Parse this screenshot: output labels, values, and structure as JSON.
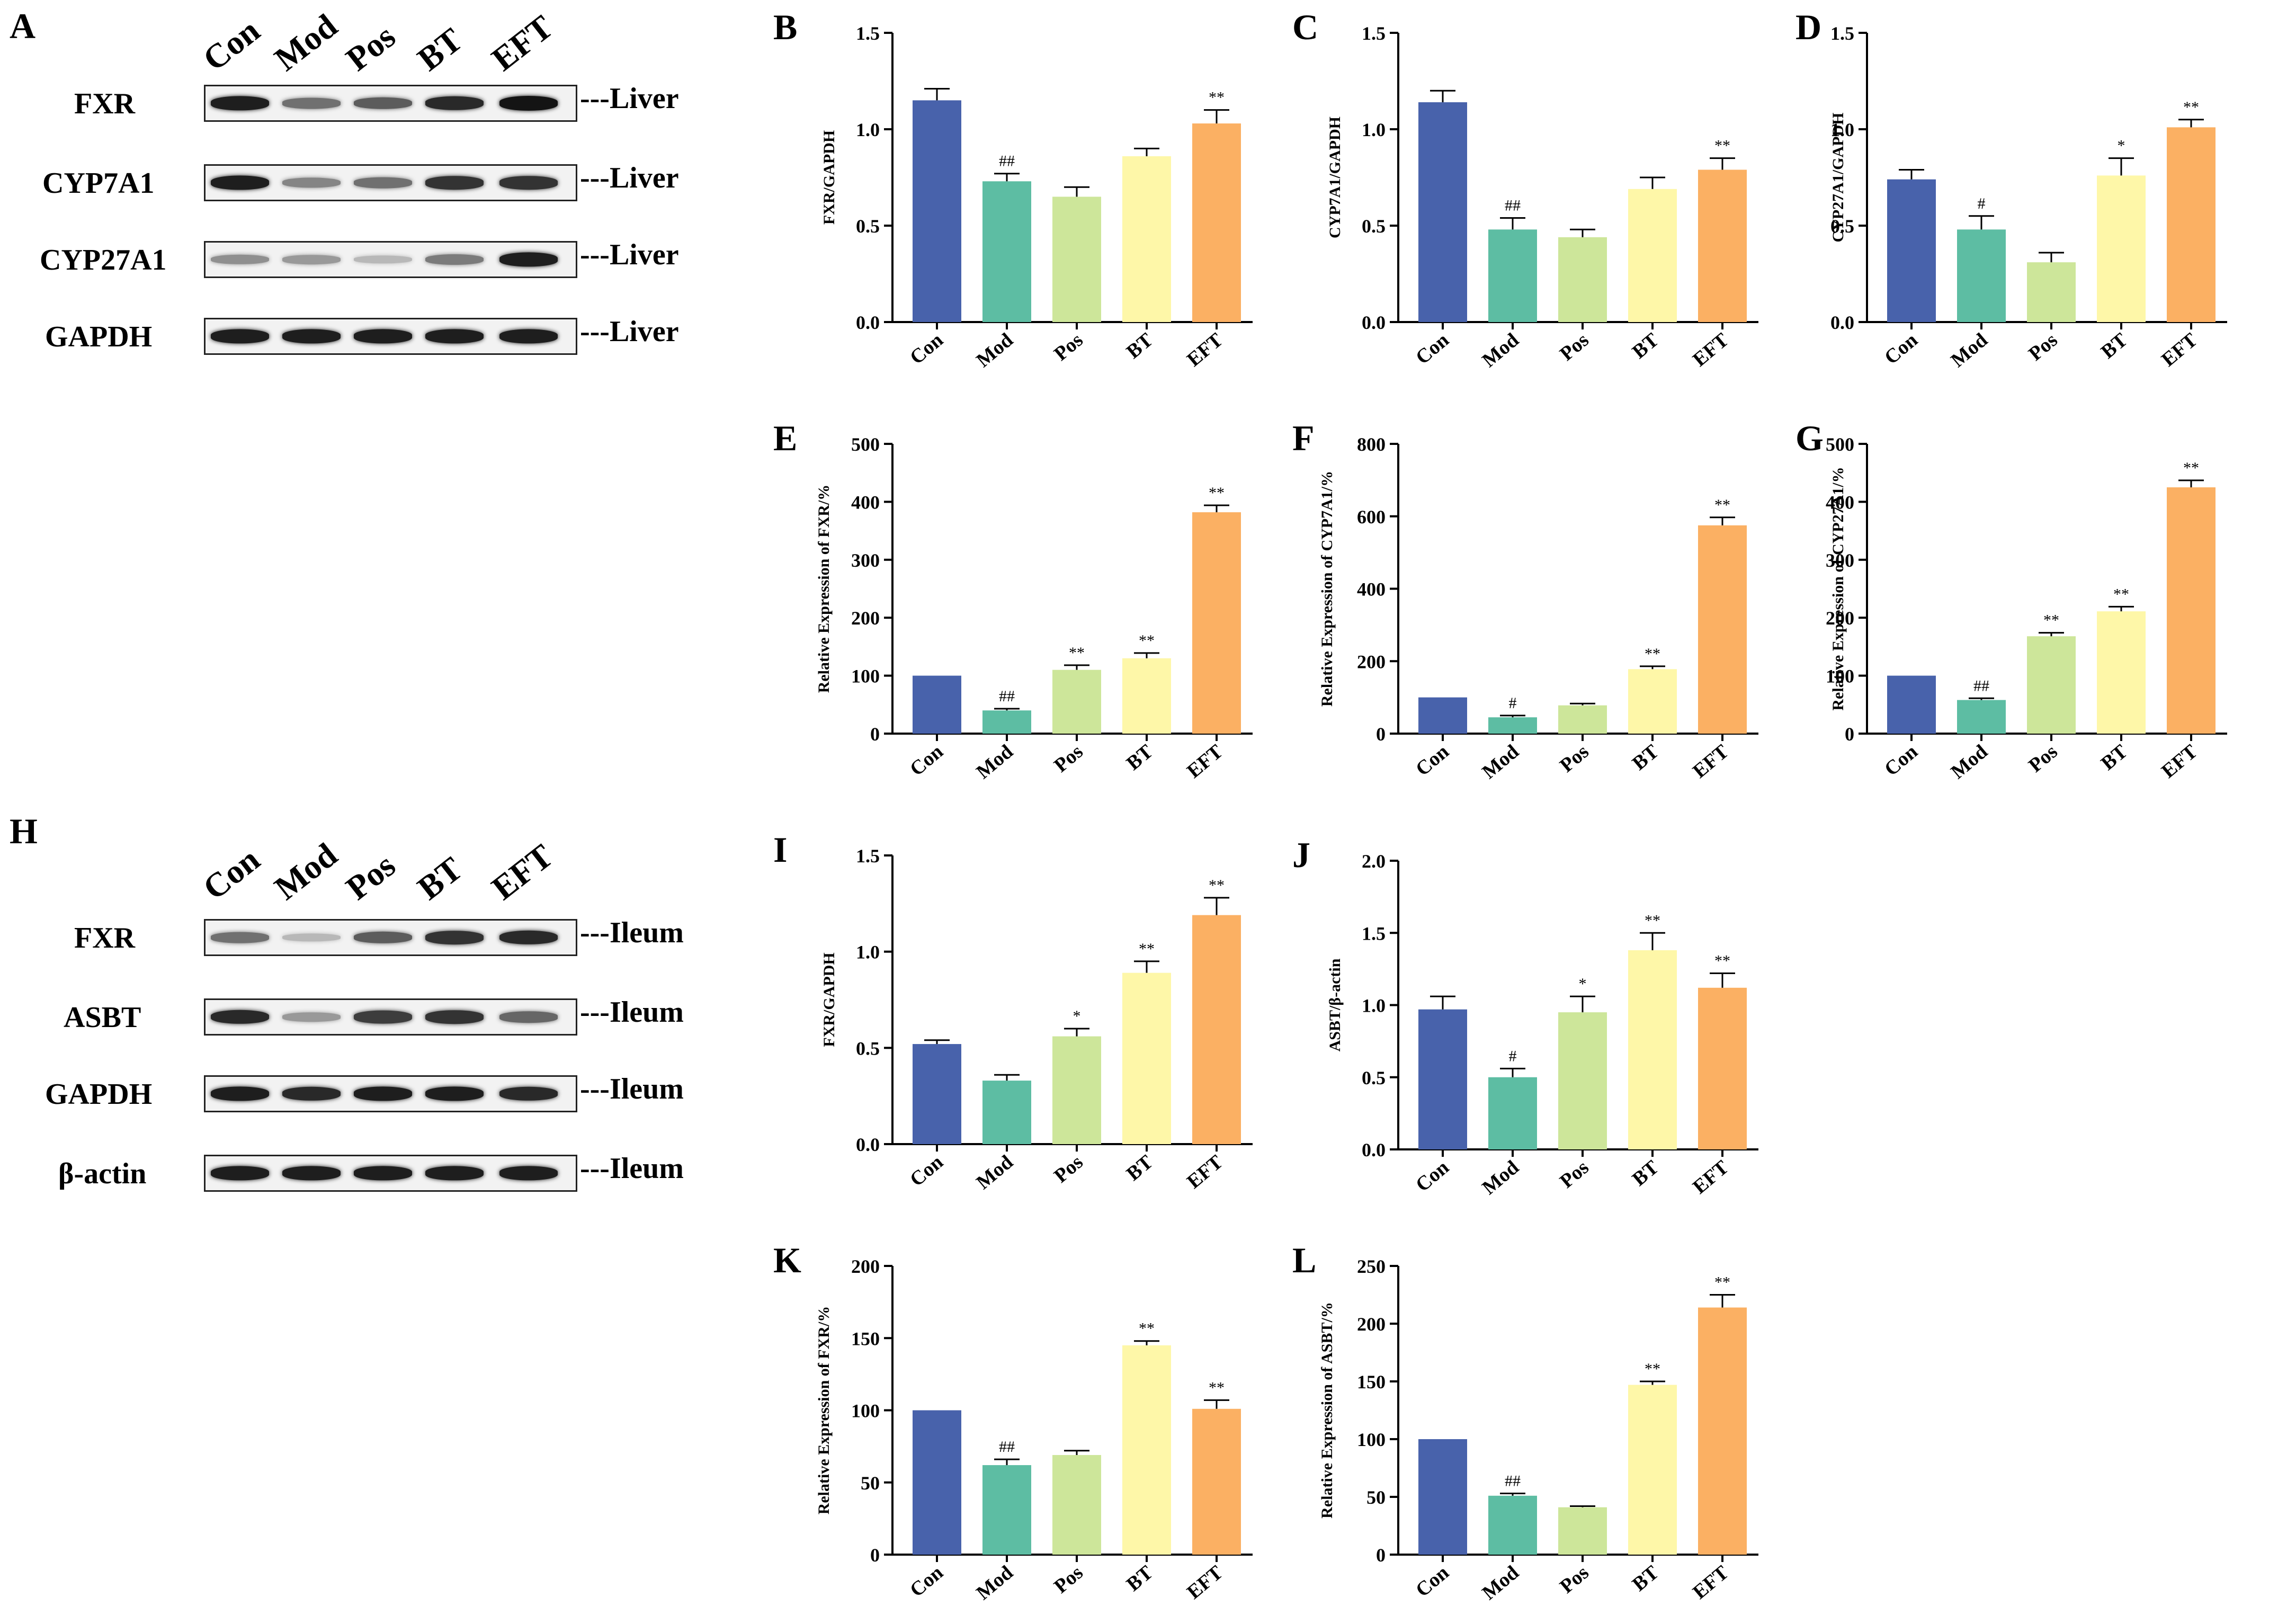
{
  "colors": {
    "Con": "#4862AB",
    "Mod": "#5DBDA3",
    "Pos": "#CDE69A",
    "BT": "#FEF7A8",
    "EFT": "#FBB063"
  },
  "groups": [
    "Con",
    "Mod",
    "Pos",
    "BT",
    "EFT"
  ],
  "blots": [
    {
      "panel": "A",
      "tissue": "---Liver",
      "rows": [
        {
          "protein": "FXR",
          "intensity": [
            0.95,
            0.55,
            0.65,
            0.9,
            1.0
          ]
        },
        {
          "protein": "CYP7A1",
          "intensity": [
            0.95,
            0.45,
            0.55,
            0.85,
            0.85
          ]
        },
        {
          "protein": "CYP27A1",
          "intensity": [
            0.4,
            0.35,
            0.2,
            0.5,
            0.95
          ]
        },
        {
          "protein": "GAPDH",
          "intensity": [
            0.95,
            0.95,
            0.95,
            0.95,
            0.95
          ]
        }
      ]
    },
    {
      "panel": "H",
      "tissue": "---Ileum",
      "rows": [
        {
          "protein": "FXR",
          "intensity": [
            0.55,
            0.2,
            0.65,
            0.85,
            0.9
          ]
        },
        {
          "protein": "ASBT",
          "intensity": [
            0.9,
            0.35,
            0.8,
            0.85,
            0.6
          ]
        },
        {
          "protein": "GAPDH",
          "intensity": [
            0.95,
            0.9,
            0.95,
            0.95,
            0.9
          ]
        },
        {
          "protein": "β-actin",
          "intensity": [
            0.95,
            0.95,
            0.95,
            0.95,
            0.95
          ]
        }
      ]
    }
  ],
  "chart_data": [
    {
      "panel": "B",
      "type": "bar",
      "ylabel": "FXR/GAPDH",
      "ylim": [
        0,
        1.5
      ],
      "ticks": [
        "0.0",
        "0.5",
        "1.0",
        "1.5"
      ],
      "categories": [
        "Con",
        "Mod",
        "Pos",
        "BT",
        "EFT"
      ],
      "values": [
        1.15,
        0.73,
        0.65,
        0.86,
        1.03
      ],
      "errors": [
        0.06,
        0.04,
        0.05,
        0.04,
        0.07
      ],
      "annotations": [
        "",
        "##",
        "",
        "",
        "**"
      ]
    },
    {
      "panel": "C",
      "type": "bar",
      "ylabel": "CYP7A1/GAPDH",
      "ylim": [
        0,
        1.5
      ],
      "ticks": [
        "0.0",
        "0.5",
        "1.0",
        "1.5"
      ],
      "categories": [
        "Con",
        "Mod",
        "Pos",
        "BT",
        "EFT"
      ],
      "values": [
        1.14,
        0.48,
        0.44,
        0.69,
        0.79
      ],
      "errors": [
        0.06,
        0.06,
        0.04,
        0.06,
        0.06
      ],
      "annotations": [
        "",
        "##",
        "",
        "",
        "**"
      ]
    },
    {
      "panel": "D",
      "type": "bar",
      "ylabel": "CYP27A1/GAPDH",
      "ylim": [
        0,
        1.5
      ],
      "ticks": [
        "0.0",
        "0.5",
        "1.0",
        "1.5"
      ],
      "categories": [
        "Con",
        "Mod",
        "Pos",
        "BT",
        "EFT"
      ],
      "values": [
        0.74,
        0.48,
        0.31,
        0.76,
        1.01
      ],
      "errors": [
        0.05,
        0.07,
        0.05,
        0.09,
        0.04
      ],
      "annotations": [
        "",
        "#",
        "",
        "*",
        "**"
      ]
    },
    {
      "panel": "E",
      "type": "bar",
      "ylabel": "Relative Expression of FXR/%",
      "ylim": [
        0,
        500
      ],
      "ticks": [
        "0",
        "100",
        "200",
        "300",
        "400",
        "500"
      ],
      "categories": [
        "Con",
        "Mod",
        "Pos",
        "BT",
        "EFT"
      ],
      "values": [
        100,
        40,
        110,
        130,
        382
      ],
      "errors": [
        0,
        3,
        8,
        9,
        12
      ],
      "annotations": [
        "",
        "##",
        "**",
        "**",
        "**"
      ]
    },
    {
      "panel": "F",
      "type": "bar",
      "ylabel": "Relative Expression of CYP7A1/%",
      "ylim": [
        0,
        800
      ],
      "ticks": [
        "0",
        "200",
        "400",
        "600",
        "800"
      ],
      "categories": [
        "Con",
        "Mod",
        "Pos",
        "BT",
        "EFT"
      ],
      "values": [
        100,
        45,
        78,
        178,
        575
      ],
      "errors": [
        0,
        5,
        5,
        8,
        22
      ],
      "annotations": [
        "",
        "#",
        "",
        "**",
        "**"
      ]
    },
    {
      "panel": "G",
      "type": "bar",
      "ylabel": "Relative Expression of CYP27A1/%",
      "ylim": [
        0,
        500
      ],
      "ticks": [
        "0",
        "100",
        "200",
        "300",
        "400",
        "500"
      ],
      "categories": [
        "Con",
        "Mod",
        "Pos",
        "BT",
        "EFT"
      ],
      "values": [
        100,
        58,
        168,
        211,
        425
      ],
      "errors": [
        0,
        3,
        6,
        8,
        12
      ],
      "annotations": [
        "",
        "##",
        "**",
        "**",
        "**"
      ]
    },
    {
      "panel": "I",
      "type": "bar",
      "ylabel": "FXR/GAPDH",
      "ylim": [
        0,
        1.5
      ],
      "ticks": [
        "0.0",
        "0.5",
        "1.0",
        "1.5"
      ],
      "categories": [
        "Con",
        "Mod",
        "Pos",
        "BT",
        "EFT"
      ],
      "values": [
        0.52,
        0.33,
        0.56,
        0.89,
        1.19
      ],
      "errors": [
        0.02,
        0.03,
        0.04,
        0.06,
        0.09
      ],
      "annotations": [
        "",
        "",
        "*",
        "**",
        "**"
      ]
    },
    {
      "panel": "J",
      "type": "bar",
      "ylabel": "ASBT/β-actin",
      "ylim": [
        0,
        2.0
      ],
      "ticks": [
        "0.0",
        "0.5",
        "1.0",
        "1.5",
        "2.0"
      ],
      "categories": [
        "Con",
        "Mod",
        "Pos",
        "BT",
        "EFT"
      ],
      "values": [
        0.97,
        0.5,
        0.95,
        1.38,
        1.12
      ],
      "errors": [
        0.09,
        0.06,
        0.11,
        0.12,
        0.1
      ],
      "annotations": [
        "",
        "#",
        "*",
        "**",
        "**"
      ]
    },
    {
      "panel": "K",
      "type": "bar",
      "ylabel": "Relative Expression of FXR/%",
      "ylim": [
        0,
        200
      ],
      "ticks": [
        "0",
        "50",
        "100",
        "150",
        "200"
      ],
      "categories": [
        "Con",
        "Mod",
        "Pos",
        "BT",
        "EFT"
      ],
      "values": [
        100,
        62,
        69,
        145,
        101
      ],
      "errors": [
        0,
        4,
        3,
        3,
        6
      ],
      "annotations": [
        "",
        "##",
        "",
        "**",
        "**"
      ]
    },
    {
      "panel": "L",
      "type": "bar",
      "ylabel": "Relative Expression of ASBT/%",
      "ylim": [
        0,
        250
      ],
      "ticks": [
        "0",
        "50",
        "100",
        "150",
        "200",
        "250"
      ],
      "categories": [
        "Con",
        "Mod",
        "Pos",
        "BT",
        "EFT"
      ],
      "values": [
        100,
        51,
        41,
        147,
        214
      ],
      "errors": [
        0,
        2,
        1,
        3,
        11
      ],
      "annotations": [
        "",
        "##",
        "",
        "**",
        "**"
      ]
    }
  ]
}
